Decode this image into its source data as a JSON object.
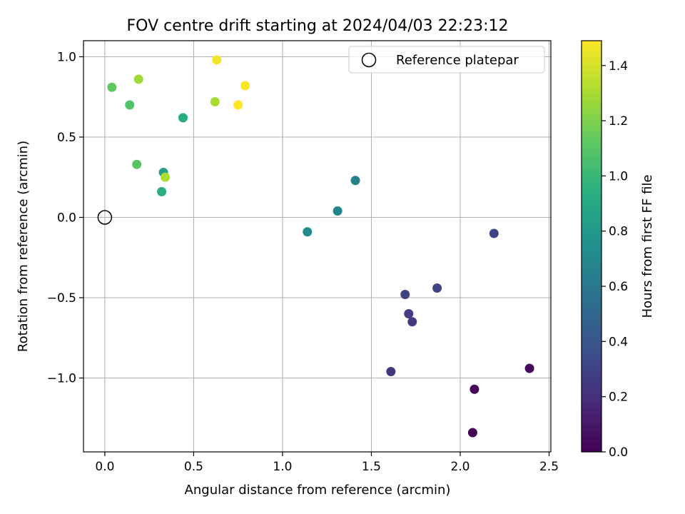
{
  "chart_data": {
    "type": "scatter",
    "title": "FOV centre drift starting at 2024/04/03 22:23:12",
    "xlabel": "Angular distance from reference (arcmin)",
    "ylabel": "Rotation from reference (arcmin)",
    "xlim": [
      -0.12,
      2.51
    ],
    "ylim": [
      -1.46,
      1.1
    ],
    "xticks": [
      0.0,
      0.5,
      1.0,
      1.5,
      2.0,
      2.5
    ],
    "xtick_labels": [
      "0.0",
      "0.5",
      "1.0",
      "1.5",
      "2.0",
      "2.5"
    ],
    "yticks": [
      -1.0,
      -0.5,
      0.0,
      0.5,
      1.0
    ],
    "ytick_labels": [
      "−1.0",
      "−0.5",
      "0.0",
      "0.5",
      "1.0"
    ],
    "grid": true,
    "legend": {
      "placement": "top-right",
      "entries": [
        "Reference platepar"
      ]
    },
    "reference_point": {
      "x": 0.0,
      "y": 0.0,
      "marker": "open-circle",
      "color": "#000000"
    },
    "colorbar": {
      "label": "Hours from first FF file",
      "range": [
        0.0,
        1.49
      ],
      "ticks": [
        0.0,
        0.2,
        0.4,
        0.6,
        0.8,
        1.0,
        1.2,
        1.4
      ],
      "tick_labels": [
        "0.0",
        "0.2",
        "0.4",
        "0.6",
        "0.8",
        "1.0",
        "1.2",
        "1.4"
      ],
      "colormap": "viridis"
    },
    "points": [
      {
        "x": 2.07,
        "y": -1.34,
        "c": 0.0
      },
      {
        "x": 2.08,
        "y": -1.07,
        "c": 0.02
      },
      {
        "x": 2.39,
        "y": -0.94,
        "c": 0.04
      },
      {
        "x": 1.61,
        "y": -0.96,
        "c": 0.24
      },
      {
        "x": 1.73,
        "y": -0.65,
        "c": 0.26
      },
      {
        "x": 1.71,
        "y": -0.6,
        "c": 0.27
      },
      {
        "x": 1.69,
        "y": -0.48,
        "c": 0.29
      },
      {
        "x": 1.87,
        "y": -0.44,
        "c": 0.3
      },
      {
        "x": 2.19,
        "y": -0.1,
        "c": 0.31
      },
      {
        "x": 1.41,
        "y": 0.23,
        "c": 0.64
      },
      {
        "x": 1.31,
        "y": 0.04,
        "c": 0.68
      },
      {
        "x": 1.14,
        "y": -0.09,
        "c": 0.7
      },
      {
        "x": 0.33,
        "y": 0.28,
        "c": 0.85
      },
      {
        "x": 0.44,
        "y": 0.62,
        "c": 0.92
      },
      {
        "x": 0.32,
        "y": 0.16,
        "c": 0.94
      },
      {
        "x": 0.14,
        "y": 0.7,
        "c": 1.08
      },
      {
        "x": 0.18,
        "y": 0.33,
        "c": 1.1
      },
      {
        "x": 0.04,
        "y": 0.81,
        "c": 1.12
      },
      {
        "x": 0.19,
        "y": 0.86,
        "c": 1.28
      },
      {
        "x": 0.34,
        "y": 0.25,
        "c": 1.31
      },
      {
        "x": 0.62,
        "y": 0.72,
        "c": 1.3
      },
      {
        "x": 0.63,
        "y": 0.98,
        "c": 1.46
      },
      {
        "x": 0.79,
        "y": 0.82,
        "c": 1.48
      },
      {
        "x": 0.75,
        "y": 0.7,
        "c": 1.49
      }
    ]
  }
}
